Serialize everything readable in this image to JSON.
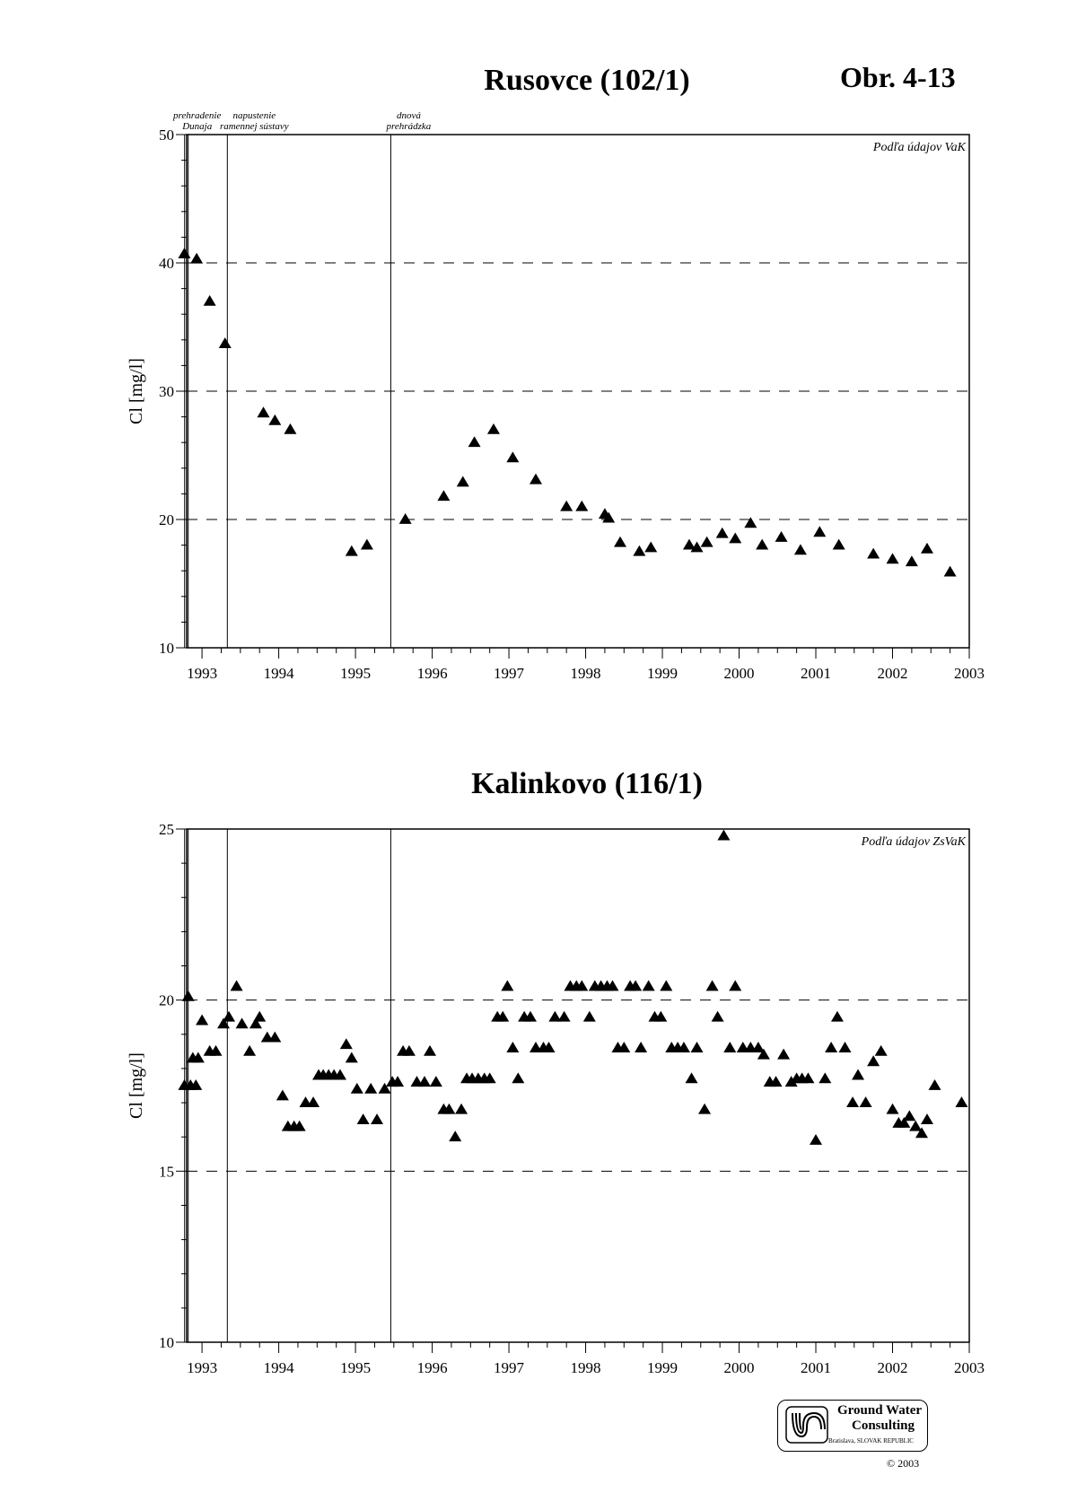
{
  "page": {
    "figure_label": "Obr. 4-13",
    "logo": {
      "line1": "Ground Water",
      "line2": "Consulting",
      "line3": "Bratislava, SLOVAK REPUBLIC"
    },
    "copyright": "© 2003"
  },
  "events": [
    {
      "lines": [
        "prehradenie",
        "Dunaja"
      ],
      "date": 1992.82
    },
    {
      "lines": [
        "napustenie",
        "ramennej sústavy"
      ],
      "date": 1993.33
    },
    {
      "lines": [
        "dnová",
        "prehrádzka"
      ],
      "date": 1995.46
    }
  ],
  "chart_data": [
    {
      "type": "scatter",
      "title": "Rusovce (102/1)",
      "ylabel": "Cl [mg/l]",
      "xlabel": "",
      "source_note": "Podľa údajov VaK",
      "xlim": [
        1992.8,
        2003.0
      ],
      "ylim": [
        10,
        50
      ],
      "yticks": [
        10,
        20,
        30,
        40,
        50
      ],
      "xticks": [
        "1993",
        "1994",
        "1995",
        "1996",
        "1997",
        "1998",
        "1999",
        "2000",
        "2001",
        "2002",
        "2003"
      ],
      "gridlines": [
        20,
        30,
        40
      ],
      "x": [
        1992.77,
        1992.93,
        1993.1,
        1993.3,
        1993.8,
        1993.95,
        1994.15,
        1994.95,
        1995.15,
        1995.65,
        1996.15,
        1996.4,
        1996.55,
        1996.8,
        1997.05,
        1997.35,
        1997.75,
        1997.95,
        1998.25,
        1998.3,
        1998.45,
        1998.7,
        1998.85,
        1999.35,
        1999.45,
        1999.58,
        1999.78,
        1999.95,
        2000.15,
        2000.3,
        2000.55,
        2000.8,
        2001.05,
        2001.3,
        2001.75,
        2002.0,
        2002.25,
        2002.45,
        2002.75
      ],
      "y": [
        40.7,
        40.3,
        37.0,
        33.7,
        28.3,
        27.7,
        27.0,
        17.5,
        18.0,
        20.0,
        21.8,
        22.9,
        26.0,
        27.0,
        24.8,
        23.1,
        21.0,
        21.0,
        20.4,
        20.1,
        18.2,
        17.5,
        17.8,
        18.0,
        17.8,
        18.2,
        18.9,
        18.5,
        19.7,
        18.0,
        18.6,
        17.6,
        19.0,
        18.0,
        17.3,
        16.9,
        16.7,
        17.7,
        15.9
      ]
    },
    {
      "type": "scatter",
      "title": "Kalinkovo (116/1)",
      "ylabel": "Cl [mg/l]",
      "xlabel": "",
      "source_note": "Podľa údajov ZsVaK",
      "xlim": [
        1992.8,
        2003.0
      ],
      "ylim": [
        10,
        25
      ],
      "yticks": [
        10,
        15,
        20,
        25
      ],
      "xticks": [
        "1993",
        "1994",
        "1995",
        "1996",
        "1997",
        "1998",
        "1999",
        "2000",
        "2001",
        "2002",
        "2003"
      ],
      "gridlines": [
        15,
        20
      ],
      "x": [
        1992.77,
        1992.82,
        1992.85,
        1992.88,
        1992.92,
        1992.95,
        1993.0,
        1993.1,
        1993.18,
        1993.28,
        1993.35,
        1993.45,
        1993.52,
        1993.62,
        1993.7,
        1993.75,
        1993.85,
        1993.95,
        1994.05,
        1994.12,
        1994.2,
        1994.27,
        1994.35,
        1994.45,
        1994.52,
        1994.58,
        1994.65,
        1994.72,
        1994.8,
        1994.88,
        1994.95,
        1995.02,
        1995.1,
        1995.2,
        1995.28,
        1995.38,
        1995.48,
        1995.55,
        1995.62,
        1995.7,
        1995.8,
        1995.9,
        1995.97,
        1996.05,
        1996.15,
        1996.22,
        1996.3,
        1996.38,
        1996.45,
        1996.52,
        1996.6,
        1996.68,
        1996.75,
        1996.85,
        1996.92,
        1996.98,
        1997.05,
        1997.12,
        1997.2,
        1997.28,
        1997.35,
        1997.45,
        1997.52,
        1997.6,
        1997.72,
        1997.8,
        1997.88,
        1997.95,
        1998.05,
        1998.12,
        1998.2,
        1998.28,
        1998.35,
        1998.42,
        1998.5,
        1998.58,
        1998.65,
        1998.72,
        1998.82,
        1998.9,
        1998.98,
        1999.05,
        1999.12,
        1999.2,
        1999.28,
        1999.38,
        1999.45,
        1999.55,
        1999.65,
        1999.72,
        1999.8,
        1999.88,
        1999.95,
        2000.05,
        2000.15,
        2000.25,
        2000.32,
        2000.4,
        2000.48,
        2000.58,
        2000.68,
        2000.75,
        2000.82,
        2000.9,
        2001.0,
        2001.12,
        2001.2,
        2001.28,
        2001.38,
        2001.48,
        2001.55,
        2001.65,
        2001.75,
        2001.85,
        2002.0,
        2002.08,
        2002.15,
        2002.22,
        2002.3,
        2002.38,
        2002.45,
        2002.55,
        2002.9
      ],
      "y": [
        17.5,
        20.1,
        17.5,
        18.3,
        17.5,
        18.3,
        19.4,
        18.5,
        18.5,
        19.3,
        19.5,
        20.4,
        19.3,
        18.5,
        19.3,
        19.5,
        18.9,
        18.9,
        17.2,
        16.3,
        16.3,
        16.3,
        17.0,
        17.0,
        17.8,
        17.8,
        17.8,
        17.8,
        17.8,
        18.7,
        18.3,
        17.4,
        16.5,
        17.4,
        16.5,
        17.4,
        17.6,
        17.6,
        18.5,
        18.5,
        17.6,
        17.6,
        18.5,
        17.6,
        16.8,
        16.8,
        16.0,
        16.8,
        17.7,
        17.7,
        17.7,
        17.7,
        17.7,
        19.5,
        19.5,
        20.4,
        18.6,
        17.7,
        19.5,
        19.5,
        18.6,
        18.6,
        18.6,
        19.5,
        19.5,
        20.4,
        20.4,
        20.4,
        19.5,
        20.4,
        20.4,
        20.4,
        20.4,
        18.6,
        18.6,
        20.4,
        20.4,
        18.6,
        20.4,
        19.5,
        19.5,
        20.4,
        18.6,
        18.6,
        18.6,
        17.7,
        18.6,
        16.8,
        20.4,
        19.5,
        24.8,
        18.6,
        20.4,
        18.6,
        18.6,
        18.6,
        18.4,
        17.6,
        17.6,
        18.4,
        17.6,
        17.7,
        17.7,
        17.7,
        15.9,
        17.7,
        18.6,
        19.5,
        18.6,
        17.0,
        17.8,
        17.0,
        18.2,
        18.5,
        16.8,
        16.4,
        16.4,
        16.6,
        16.3,
        16.1,
        16.5,
        17.5,
        17.0
      ]
    }
  ]
}
